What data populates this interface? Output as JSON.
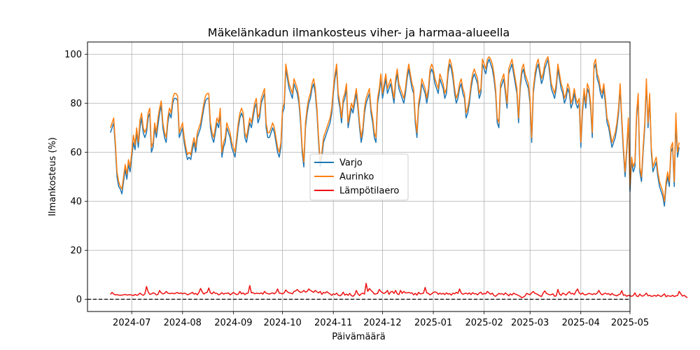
{
  "chart_data": {
    "type": "line",
    "title": "Mäkelänkadun ilmankosteus viher- ja harmaa-alueella",
    "xlabel": "Päivämäärä",
    "ylabel": "Ilmankosteus (%)",
    "x_range": [
      "2024-06-04",
      "2025-05-01"
    ],
    "ylim": [
      -5,
      105
    ],
    "x_ticks": [
      "2024-07",
      "2024-08",
      "2024-09",
      "2024-10",
      "2024-11",
      "2024-12",
      "2025-01",
      "2025-02",
      "2025-03",
      "2025-04",
      "2025-05"
    ],
    "y_ticks": [
      0,
      20,
      40,
      60,
      80,
      100
    ],
    "grid": true,
    "legend_position": "center",
    "reference_line": {
      "y": 0,
      "style": "dashed",
      "color": "#000000"
    },
    "start_date": "2024-06-18",
    "series": [
      {
        "name": "Varjo",
        "color": "#1f77b4",
        "values": [
          68,
          70,
          72,
          62,
          50,
          46,
          45,
          43,
          48,
          53,
          49,
          55,
          52,
          58,
          64,
          61,
          68,
          62,
          70,
          74,
          68,
          66,
          68,
          74,
          76,
          60,
          62,
          70,
          66,
          71,
          76,
          79,
          70,
          66,
          64,
          72,
          76,
          74,
          80,
          82,
          82,
          81,
          66,
          68,
          70,
          64,
          60,
          57,
          58,
          57,
          61,
          64,
          60,
          66,
          68,
          70,
          74,
          78,
          81,
          82,
          82,
          70,
          66,
          64,
          68,
          72,
          70,
          76,
          58,
          62,
          64,
          70,
          68,
          66,
          62,
          60,
          58,
          64,
          70,
          74,
          76,
          74,
          66,
          64,
          68,
          72,
          70,
          74,
          78,
          80,
          72,
          74,
          80,
          82,
          84,
          70,
          66,
          66,
          68,
          70,
          68,
          64,
          60,
          58,
          62,
          76,
          78,
          94,
          90,
          86,
          84,
          82,
          88,
          86,
          84,
          80,
          72,
          60,
          54,
          70,
          76,
          80,
          82,
          86,
          88,
          84,
          76,
          64,
          54,
          58,
          64,
          66,
          68,
          70,
          72,
          76,
          84,
          90,
          94,
          82,
          78,
          72,
          80,
          82,
          86,
          70,
          74,
          78,
          76,
          80,
          84,
          78,
          70,
          64,
          68,
          76,
          80,
          82,
          84,
          76,
          72,
          66,
          64,
          80,
          84,
          90,
          82,
          86,
          90,
          84,
          86,
          88,
          84,
          80,
          88,
          92,
          86,
          84,
          82,
          80,
          84,
          90,
          94,
          90,
          86,
          84,
          72,
          66,
          78,
          82,
          88,
          86,
          84,
          80,
          84,
          92,
          94,
          92,
          88,
          86,
          84,
          90,
          88,
          86,
          82,
          84,
          92,
          96,
          94,
          90,
          84,
          80,
          82,
          86,
          88,
          84,
          82,
          74,
          76,
          80,
          86,
          90,
          92,
          90,
          88,
          82,
          84,
          96,
          94,
          92,
          96,
          98,
          96,
          94,
          90,
          84,
          72,
          70,
          86,
          88,
          90,
          84,
          78,
          92,
          94,
          96,
          92,
          88,
          84,
          72,
          86,
          92,
          94,
          90,
          88,
          86,
          80,
          64,
          84,
          90,
          94,
          96,
          92,
          88,
          90,
          94,
          96,
          98,
          92,
          86,
          84,
          82,
          86,
          94,
          90,
          86,
          84,
          80,
          82,
          86,
          84,
          78,
          80,
          84,
          80,
          78,
          80,
          62,
          76,
          84,
          78,
          86,
          84,
          78,
          66,
          94,
          96,
          90,
          88,
          84,
          82,
          86,
          80,
          72,
          70,
          66,
          62,
          64,
          66,
          70,
          76,
          86,
          72,
          60,
          50,
          60,
          72,
          44,
          56,
          52,
          54,
          74,
          82,
          52,
          48,
          60,
          70,
          88,
          70,
          82,
          60,
          52,
          54,
          56,
          50,
          46,
          44,
          42,
          38,
          46,
          50,
          46,
          60,
          62,
          46,
          72,
          58,
          62
        ]
      },
      {
        "name": "Aurinko",
        "color": "#ff7f0e",
        "values": [
          70,
          72,
          74,
          64,
          52,
          48,
          46,
          45,
          50,
          55,
          51,
          57,
          54,
          60,
          67,
          63,
          70,
          64,
          73,
          76,
          70,
          68,
          70,
          76,
          78,
          62,
          64,
          72,
          68,
          74,
          78,
          81,
          72,
          68,
          66,
          74,
          78,
          76,
          82,
          84,
          84,
          83,
          68,
          70,
          72,
          66,
          62,
          59,
          60,
          59,
          63,
          66,
          62,
          68,
          70,
          72,
          76,
          80,
          83,
          84,
          84,
          72,
          68,
          66,
          70,
          74,
          72,
          78,
          60,
          64,
          66,
          72,
          70,
          68,
          64,
          62,
          60,
          66,
          72,
          76,
          78,
          76,
          68,
          66,
          70,
          74,
          72,
          76,
          80,
          82,
          74,
          76,
          82,
          84,
          86,
          72,
          68,
          68,
          70,
          72,
          70,
          66,
          62,
          60,
          64,
          78,
          80,
          96,
          92,
          88,
          86,
          84,
          90,
          88,
          86,
          82,
          74,
          62,
          56,
          72,
          78,
          82,
          84,
          88,
          90,
          86,
          78,
          66,
          56,
          60,
          66,
          68,
          70,
          72,
          74,
          78,
          86,
          92,
          96,
          84,
          80,
          74,
          82,
          84,
          88,
          72,
          76,
          80,
          78,
          82,
          86,
          80,
          72,
          66,
          70,
          78,
          82,
          84,
          86,
          78,
          74,
          68,
          66,
          82,
          86,
          92,
          84,
          88,
          92,
          86,
          88,
          90,
          86,
          82,
          90,
          94,
          88,
          86,
          84,
          82,
          86,
          92,
          96,
          92,
          88,
          86,
          74,
          68,
          80,
          84,
          90,
          88,
          86,
          82,
          86,
          94,
          96,
          94,
          90,
          88,
          86,
          92,
          90,
          88,
          84,
          86,
          94,
          98,
          96,
          92,
          86,
          82,
          84,
          88,
          90,
          86,
          84,
          76,
          78,
          82,
          88,
          92,
          94,
          92,
          90,
          84,
          86,
          98,
          96,
          94,
          98,
          99,
          98,
          96,
          92,
          86,
          74,
          72,
          88,
          90,
          92,
          86,
          80,
          94,
          96,
          98,
          94,
          90,
          86,
          74,
          88,
          94,
          96,
          92,
          90,
          88,
          82,
          66,
          86,
          92,
          96,
          98,
          94,
          90,
          92,
          96,
          98,
          99,
          94,
          88,
          86,
          84,
          88,
          96,
          92,
          88,
          86,
          82,
          84,
          88,
          86,
          80,
          82,
          86,
          82,
          80,
          82,
          64,
          78,
          86,
          80,
          88,
          86,
          80,
          68,
          96,
          98,
          92,
          90,
          86,
          84,
          88,
          82,
          74,
          72,
          68,
          64,
          66,
          68,
          72,
          78,
          88,
          74,
          62,
          52,
          62,
          74,
          46,
          58,
          54,
          56,
          76,
          84,
          54,
          50,
          62,
          72,
          90,
          72,
          84,
          62,
          54,
          56,
          58,
          52,
          48,
          46,
          44,
          40,
          48,
          52,
          48,
          62,
          64,
          48,
          76,
          60,
          64
        ]
      },
      {
        "name": "Lämpötilaero",
        "color": "#ee1111",
        "values": [
          2,
          2.8,
          2.1,
          1.8,
          1.9,
          1.7,
          1.6,
          1.7,
          1.8,
          2,
          1.7,
          1.8,
          1.9,
          1.7,
          1.5,
          2,
          1.6,
          1.8,
          2.5,
          2,
          1.6,
          2.2,
          5.2,
          3,
          2,
          2.2,
          2.6,
          2.4,
          1.8,
          2,
          3.6,
          2.6,
          2.2,
          2.4,
          3.2,
          2.5,
          2.3,
          2.4,
          2.5,
          2.2,
          2.6,
          2.7,
          2.3,
          2.6,
          2.2,
          2.5,
          2.3,
          1.8,
          2.1,
          2.4,
          2.8,
          2.1,
          2.4,
          1.8,
          2.8,
          4.4,
          3,
          2.1,
          2.6,
          2.8,
          4.6,
          2.6,
          2.2,
          3,
          2.4,
          2.4,
          1.8,
          2.1,
          2.7,
          2.1,
          2.4,
          2.4,
          2.6,
          1.8,
          2.2,
          2.8,
          2.3,
          1.9,
          2.1,
          3.2,
          2.2,
          2.6,
          1.9,
          2.4,
          2.5,
          5.6,
          2.6,
          2.7,
          2.2,
          2.5,
          2.4,
          2.3,
          2.6,
          2.1,
          3.2,
          2.5,
          2.3,
          2.1,
          2.4,
          2.6,
          2.2,
          2.8,
          4.2,
          2.5,
          2.4,
          2.2,
          2.6,
          3.8,
          3,
          2.6,
          2.5,
          2.2,
          3.2,
          3.4,
          4,
          3.2,
          2.8,
          3,
          3.6,
          2.9,
          3.2,
          4.2,
          3.6,
          3.2,
          2.8,
          3.6,
          3,
          2.6,
          3.2,
          2,
          2.8,
          2.5,
          3.1,
          2.6,
          2.2,
          1.6,
          2.2,
          1.9,
          2.5,
          1.7,
          1.4,
          1.8,
          2.9,
          1.7,
          2.1,
          1.6,
          2.4,
          1.5,
          1.2,
          1.8,
          3.6,
          2.2,
          1.5,
          2.2,
          2.5,
          2.1,
          6.5,
          3.2,
          4.4,
          3.6,
          3,
          2.1,
          2.2,
          2.4,
          4,
          3.2,
          2.6,
          2.4,
          2.8,
          3.6,
          2,
          3,
          3.2,
          2.4,
          3.6,
          2.2,
          1.9,
          3.6,
          2.4,
          3.2,
          2.6,
          2.6,
          2.8,
          2.5,
          2.6,
          1.8,
          2.4,
          1.7,
          2.8,
          2.2,
          2.3,
          2.5,
          4.8,
          2.6,
          2.4,
          1.8,
          2.2,
          2.8,
          3,
          2.8,
          2,
          2.5,
          2.1,
          2.4,
          1.9,
          2.6,
          2.1,
          2.3,
          1.7,
          2.5,
          2.2,
          2.8,
          2.4,
          4.2,
          2.6,
          2,
          2.3,
          2.5,
          2.1,
          2.6,
          1.9,
          2.7,
          2.2,
          2.3,
          1.8,
          2.5,
          2.9,
          2,
          2.4,
          2.2,
          3.2,
          2.6,
          2,
          2.5,
          1.5,
          1.2,
          1.8,
          2.4,
          2.1,
          2.3,
          1.8,
          2.6,
          2,
          1.4,
          2.2,
          1.7,
          2.5,
          2.1,
          1.9,
          1.5,
          1.2,
          0.6,
          0.9,
          1.4,
          2.4,
          2.1,
          1.8,
          2.6,
          3.2,
          2.4,
          2.2,
          1.8,
          1.4,
          1.1,
          2.5,
          3.4,
          2.4,
          2.1,
          1.8,
          1.9,
          2.2,
          1.2,
          1.4,
          4,
          2.1,
          1.6,
          2.5,
          2.2,
          1.7,
          2.5,
          3.1,
          2.2,
          2.4,
          1.9,
          3.2,
          4.2,
          2.6,
          2,
          2.6,
          1.9,
          1.8,
          2.1,
          2.4,
          2.2,
          1.9,
          2.3,
          2,
          2.5,
          3.6,
          2.4,
          1.8,
          2.2,
          2.5,
          2.1,
          2.3,
          1.7,
          2.4,
          1.8,
          1.6,
          1.4,
          1.9,
          2.1,
          3.5,
          1.6,
          1.8,
          1.2,
          1.6,
          1.4,
          1.2,
          1.5,
          2.6,
          1.3,
          1.1,
          2.1,
          1.4,
          1.3,
          1.8,
          2.5,
          1.4,
          1.6,
          1.2,
          1.3,
          1.6,
          1.2,
          1.8,
          1.4,
          1.1,
          1.6,
          2.2,
          1,
          1.5,
          1.3,
          1.2,
          1.6,
          1.1,
          1.4,
          1.5,
          3.2,
          2.2,
          1.3,
          1.6,
          1.1,
          0.6
        ]
      }
    ]
  }
}
